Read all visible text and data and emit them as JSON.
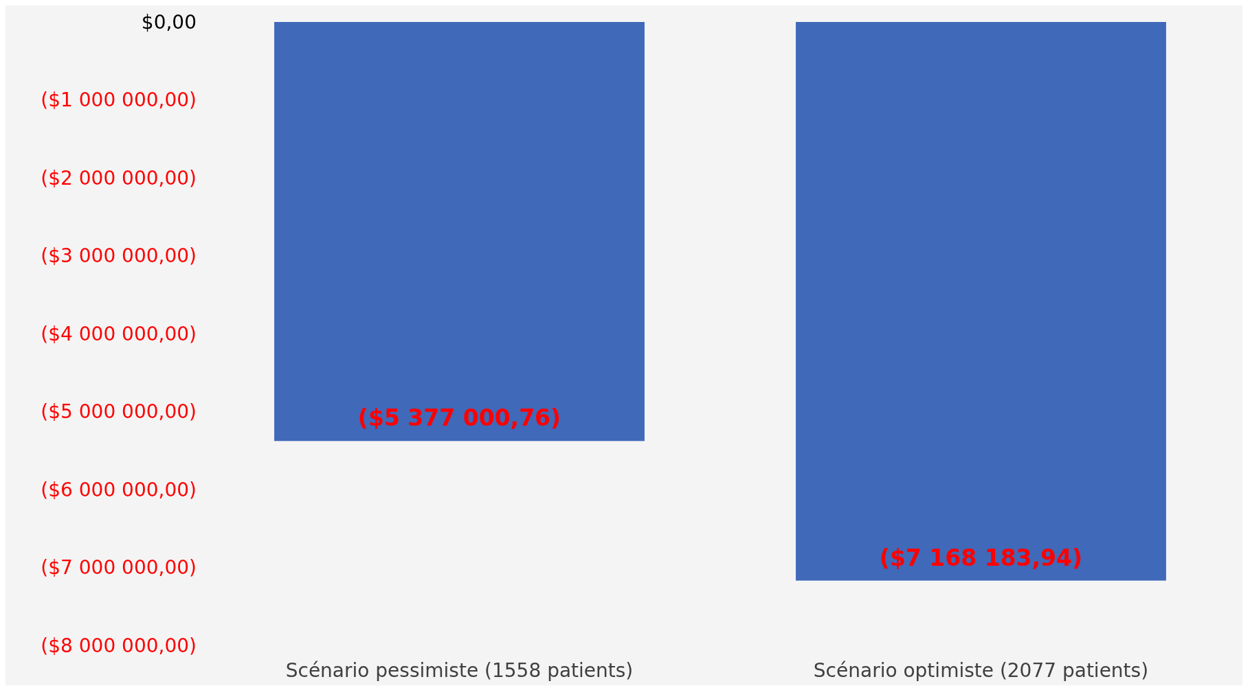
{
  "chart_data": {
    "type": "bar",
    "categories": [
      "Scénario pessimiste (1558 patients)",
      "Scénario optimiste (2077 patients)"
    ],
    "values": [
      -5377000.76,
      -7168183.94
    ],
    "value_labels": [
      "($5 377 000,76)",
      "($7 168 183,94)"
    ],
    "color": "#4069b9",
    "ylim": [
      -8000000,
      0
    ],
    "yticks": [
      {
        "value": 0,
        "label": "$0,00"
      },
      {
        "value": -1000000,
        "label": "($1 000 000,00)"
      },
      {
        "value": -2000000,
        "label": "($2 000 000,00)"
      },
      {
        "value": -3000000,
        "label": "($3 000 000,00)"
      },
      {
        "value": -4000000,
        "label": "($4 000 000,00)"
      },
      {
        "value": -5000000,
        "label": "($5 000 000,00)"
      },
      {
        "value": -6000000,
        "label": "($6 000 000,00)"
      },
      {
        "value": -7000000,
        "label": "($7 000 000,00)"
      },
      {
        "value": -8000000,
        "label": "($8 000 000,00)"
      }
    ],
    "grid": false
  }
}
